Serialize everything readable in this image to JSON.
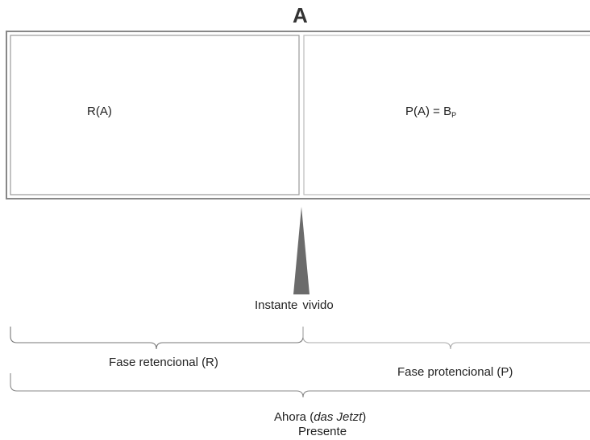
{
  "diagram": {
    "title": "A",
    "left_box_label": "R(A)",
    "right_box_label": "P(A) = B",
    "right_box_subscript": "P",
    "instant_label_1": "Instante",
    "instant_label_2": "vivido",
    "retention_label": "Fase retencional (R)",
    "protention_label": "Fase protencional (P)",
    "now_label_prefix": "Ahora (",
    "now_label_italic": "das Jetzt",
    "now_label_suffix": ")",
    "present_label": "Presente"
  }
}
